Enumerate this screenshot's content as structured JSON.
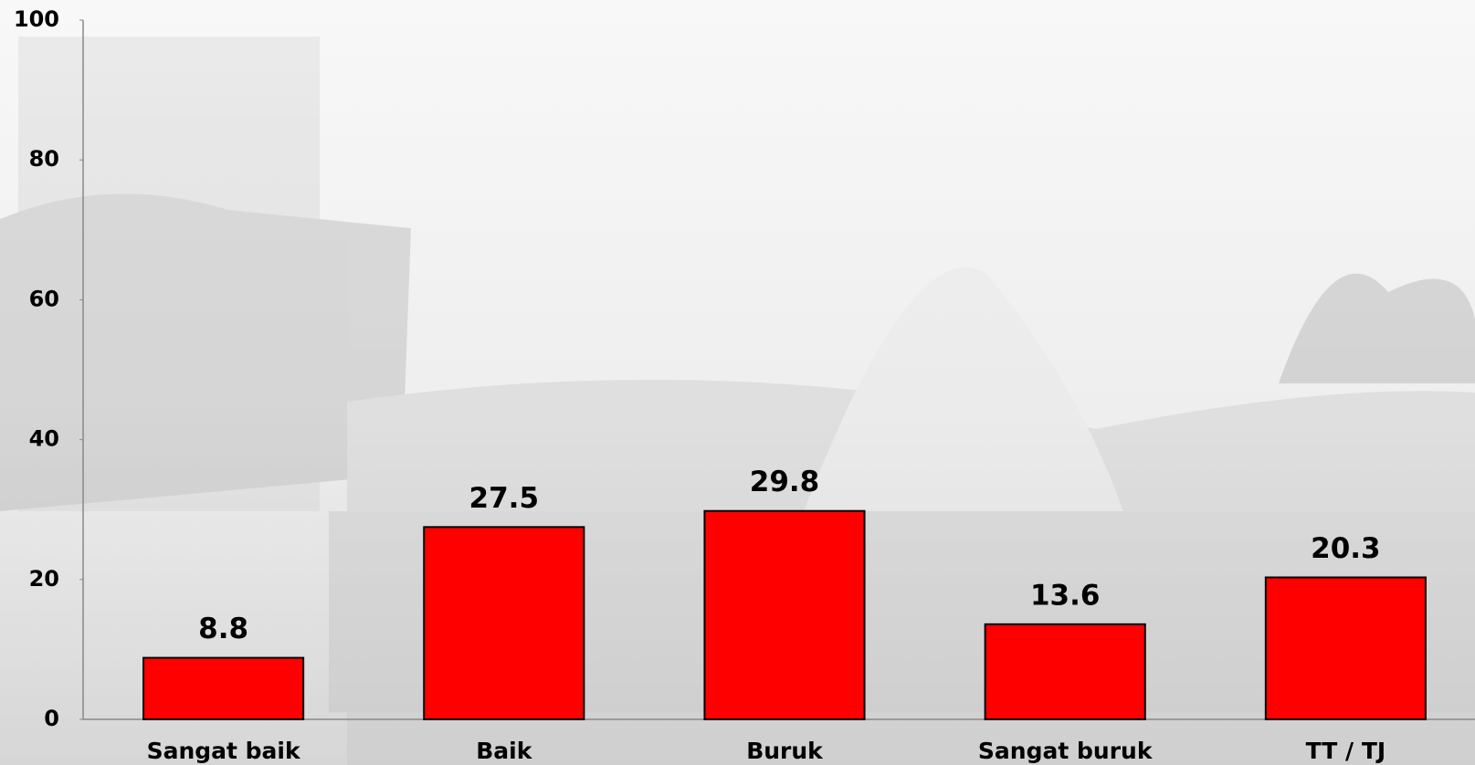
{
  "chart_data": {
    "type": "bar",
    "categories": [
      "Sangat baik",
      "Baik",
      "Buruk",
      "Sangat buruk",
      "TT / TJ"
    ],
    "values": [
      8.8,
      27.5,
      29.8,
      13.6,
      20.3
    ],
    "color": "#ff0000",
    "ylim": [
      0,
      100
    ],
    "yticks": [
      0,
      20,
      40,
      60,
      80,
      100
    ],
    "grid": false,
    "data_labels": true
  }
}
